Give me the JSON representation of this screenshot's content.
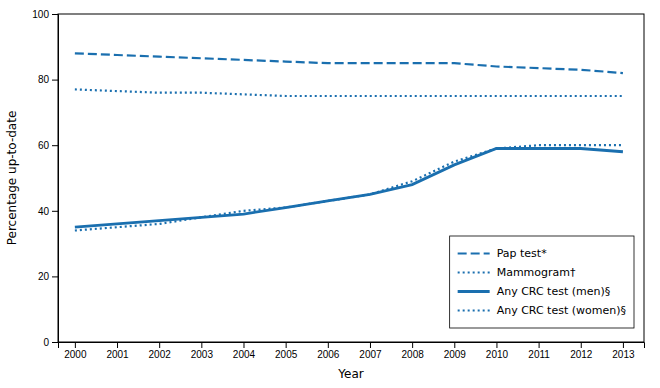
{
  "chart_data": {
    "type": "line",
    "xlabel": "Year",
    "ylabel": "Percentage up-to-date",
    "x": [
      2000,
      2001,
      2002,
      2003,
      2004,
      2005,
      2006,
      2007,
      2008,
      2009,
      2010,
      2011,
      2012,
      2013
    ],
    "xlim": [
      1999.6,
      2013.5
    ],
    "xticks": [
      2000,
      2001,
      2002,
      2003,
      2004,
      2005,
      2006,
      2007,
      2008,
      2009,
      2010,
      2011,
      2012,
      2013
    ],
    "ylim": [
      0,
      100
    ],
    "yticks": [
      0,
      20,
      40,
      60,
      80,
      100
    ],
    "grid": false,
    "legend": "lower right",
    "series": [
      {
        "name": "Pap test*",
        "color": "#1a6faf",
        "line_style": "dashed",
        "values": [
          88,
          87.5,
          87,
          86.5,
          86,
          85.5,
          85,
          85,
          85,
          85,
          84,
          83.5,
          83,
          82
        ]
      },
      {
        "name": "Mammogram†",
        "color": "#1a6faf",
        "line_style": "dotted",
        "values": [
          77,
          76.5,
          76,
          76,
          75.5,
          75,
          75,
          75,
          75,
          75,
          75,
          75,
          75,
          75
        ]
      },
      {
        "name": "Any CRC test (men)§",
        "color": "#1a6faf",
        "line_style": "solid",
        "values": [
          35,
          36,
          37,
          38,
          39,
          41,
          43,
          45,
          48,
          54,
          59,
          59,
          59,
          58
        ]
      },
      {
        "name": "Any CRC test (women)§",
        "color": "#1a6faf",
        "line_style": "dotted",
        "values": [
          34,
          35,
          36,
          38,
          40,
          41,
          43,
          45,
          49,
          55,
          59,
          60,
          60,
          60
        ]
      }
    ]
  }
}
